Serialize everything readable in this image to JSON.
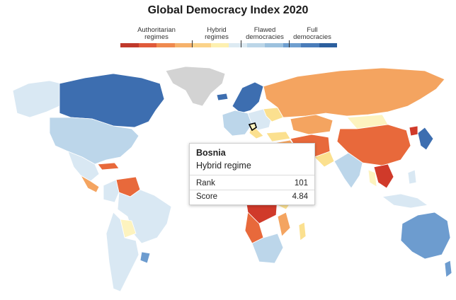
{
  "title": "Global Democracy Index 2020",
  "legend": {
    "categories": [
      {
        "label_line1": "Authoritarian",
        "label_line2": "regimes"
      },
      {
        "label_line1": "Hybrid",
        "label_line2": "regimes"
      },
      {
        "label_line1": "Flawed",
        "label_line2": "democracies"
      },
      {
        "label_line1": "Full",
        "label_line2": "democracies"
      }
    ],
    "scale_colors": [
      "#c0392b",
      "#e05a3a",
      "#ef8a4f",
      "#f6b26b",
      "#fbd38a",
      "#fdf0b0",
      "#ddeaf2",
      "#bcd6e8",
      "#9cc1de",
      "#6f9fcf",
      "#4a7dba",
      "#2c5f9e"
    ]
  },
  "tooltip": {
    "country": "Bosnia",
    "regime": "Hybrid regime",
    "rank_label": "Rank",
    "rank_value": "101",
    "score_label": "Score",
    "score_value": "4.84"
  },
  "colors": {
    "full": "#3d6eb0",
    "full_light": "#6d9ccf",
    "flawed": "#bcd6ea",
    "flawed_light": "#d9e8f3",
    "hybrid": "#fbe08f",
    "hybrid_light": "#fdf3bf",
    "authoritarian_light": "#f4a460",
    "authoritarian": "#e8693b",
    "authoritarian_dark": "#d03a2a",
    "no_data": "#d3d3d3"
  }
}
